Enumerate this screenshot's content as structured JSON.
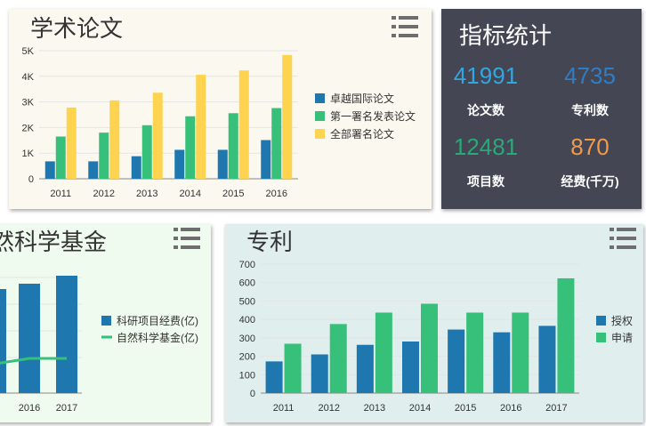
{
  "papers": {
    "title": "学术论文",
    "menu_icon": "list-menu-icon",
    "chart_data": {
      "type": "bar",
      "categories": [
        "2011",
        "2012",
        "2013",
        "2014",
        "2015",
        "2016"
      ],
      "y_ticks": [
        "0",
        "1K",
        "2K",
        "3K",
        "4K",
        "5K"
      ],
      "ylim": [
        0,
        5000
      ],
      "legend_position": "right",
      "series": [
        {
          "name": "卓越国际论文",
          "color": "#1f77b0",
          "values": [
            680,
            680,
            880,
            1130,
            1130,
            1510
          ]
        },
        {
          "name": "第一署名发表论文",
          "color": "#36c07a",
          "values": [
            1650,
            1800,
            2090,
            2440,
            2560,
            2760
          ]
        },
        {
          "name": "全部署名论文",
          "color": "#fdd350",
          "values": [
            2780,
            3060,
            3360,
            4060,
            4230,
            4830
          ]
        }
      ]
    }
  },
  "stats": {
    "title": "指标统计",
    "items": [
      {
        "value": "41991",
        "label": "论文数",
        "color": "#32a6e0"
      },
      {
        "value": "4735",
        "label": "专利数",
        "color": "#2f7dc4"
      },
      {
        "value": "12481",
        "label": "项目数",
        "color": "#2aa879"
      },
      {
        "value": "870",
        "label": "经费(千万)",
        "color": "#f39a48"
      }
    ]
  },
  "fund": {
    "title": "然科学基金",
    "menu_icon": "list-menu-icon",
    "chart_data": {
      "type": "bar",
      "categories": [
        "5",
        "2016",
        "2017"
      ],
      "legend_position": "right",
      "series": [
        {
          "name": "科研项目经费(亿)",
          "type": "bar",
          "color": "#1f77b0",
          "values": [
            78,
            82,
            88
          ]
        },
        {
          "name": "自然科学基金(亿)",
          "type": "line",
          "color": "#36c07a",
          "values": [
            22,
            26,
            26
          ]
        }
      ]
    }
  },
  "patents": {
    "title": "专利",
    "menu_icon": "list-menu-icon",
    "chart_data": {
      "type": "bar",
      "categories": [
        "2011",
        "2012",
        "2013",
        "2014",
        "2015",
        "2016",
        "2017"
      ],
      "y_ticks": [
        "0",
        "100",
        "200",
        "300",
        "400",
        "500",
        "600",
        "700"
      ],
      "ylim": [
        0,
        700
      ],
      "legend_position": "right",
      "series": [
        {
          "name": "授权",
          "color": "#1f77b0",
          "values": [
            172,
            210,
            262,
            280,
            345,
            330,
            365
          ]
        },
        {
          "name": "申请",
          "color": "#36c07a",
          "values": [
            268,
            375,
            437,
            485,
            437,
            437,
            623
          ]
        }
      ]
    }
  }
}
